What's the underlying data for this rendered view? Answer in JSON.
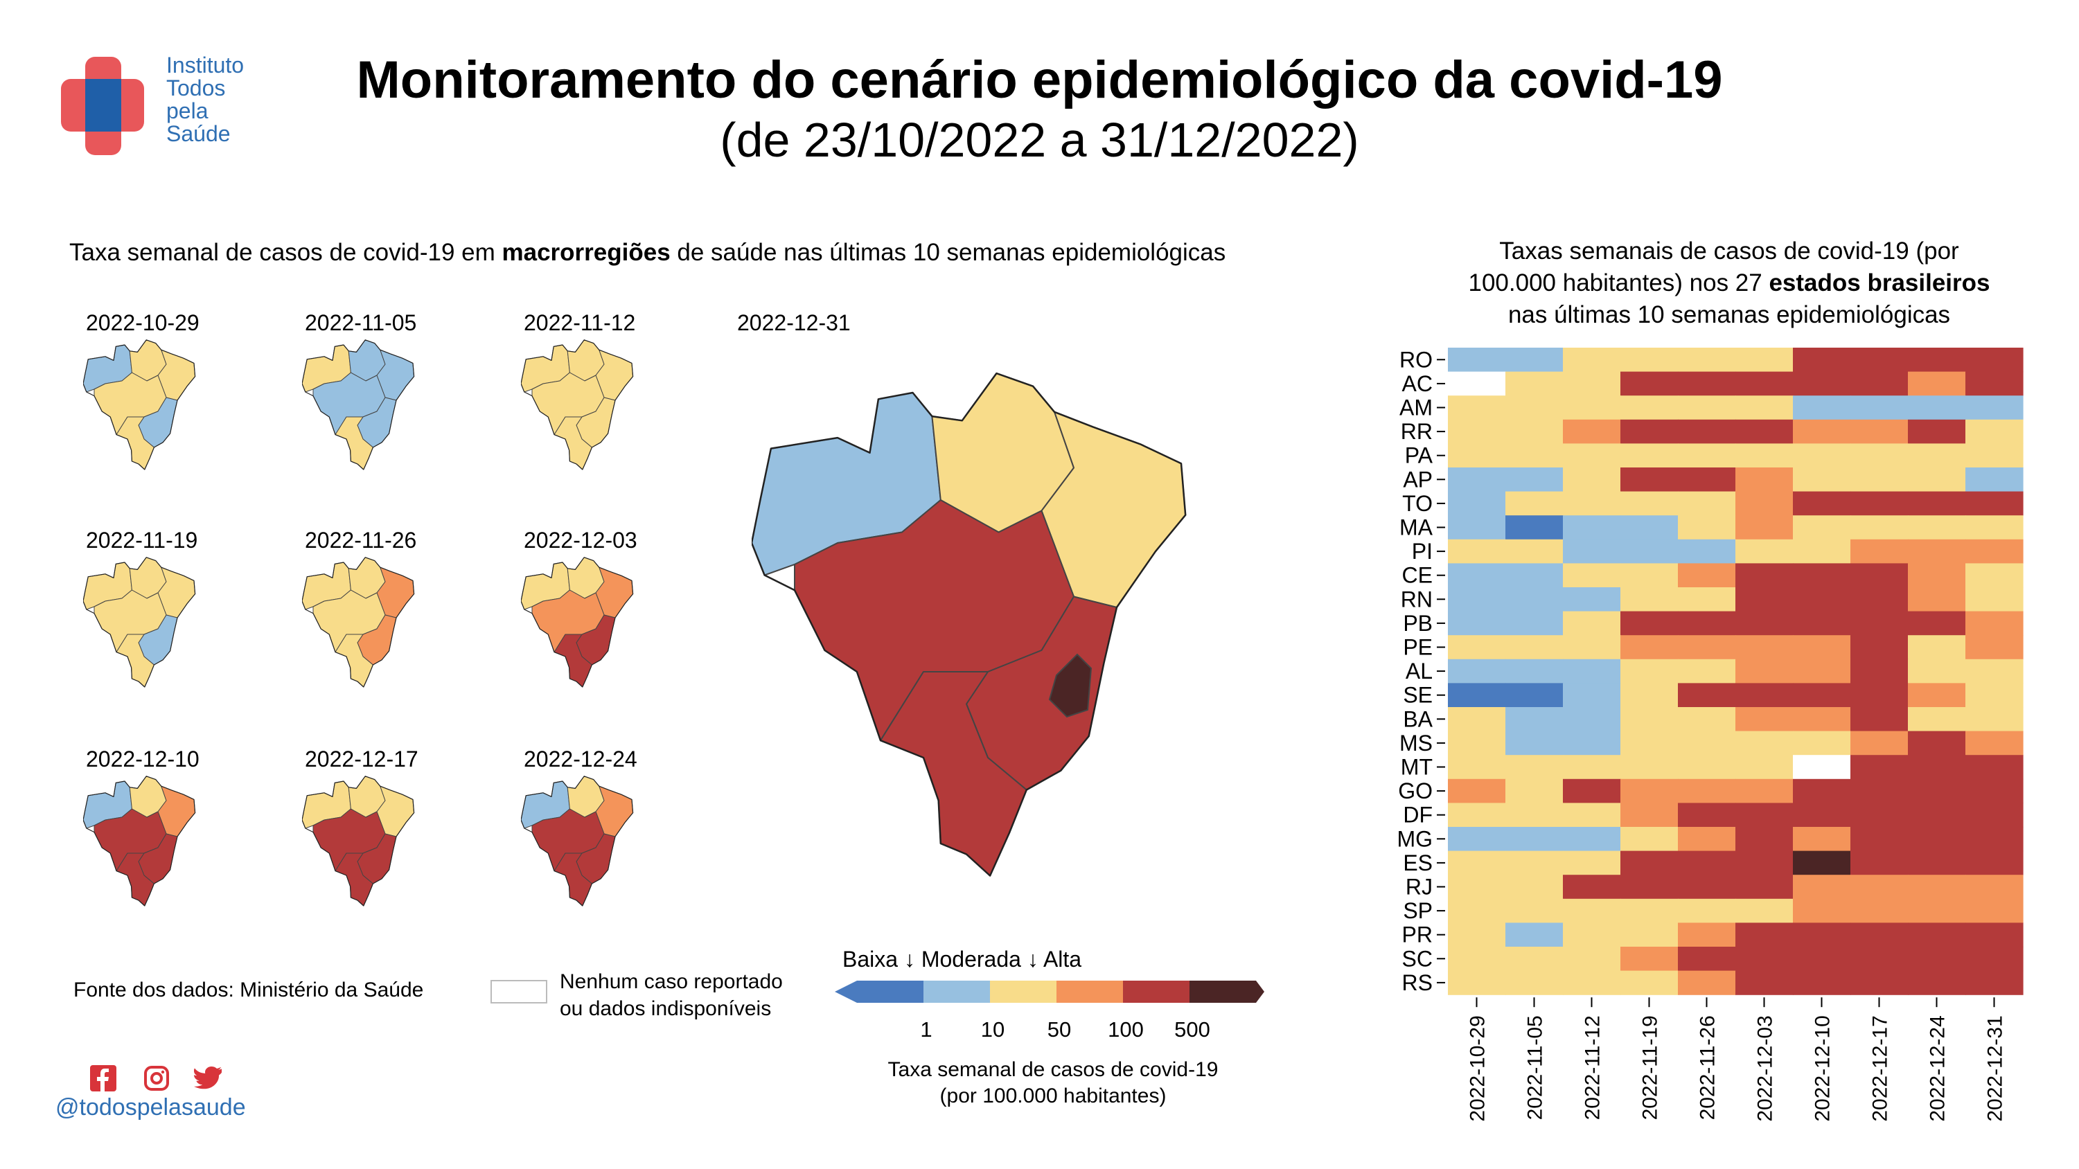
{
  "header": {
    "title": "Monitoramento do cenário epidemiológico da covid-19",
    "subtitle": "(de 23/10/2022 a 31/12/2022)"
  },
  "logo": {
    "lines": [
      "Instituto",
      "Todos",
      "pela",
      "Saúde"
    ],
    "colors": {
      "cross": "#e8575a",
      "center": "#1f5fa8",
      "text": "#2f6fb3"
    }
  },
  "maps": {
    "heading_pre": "Taxa semanal de casos de covid-19 em ",
    "heading_bold": "macrorregiões",
    "heading_post": " de saúde nas últimas 10 semanas epidemiológicas",
    "small_dates": [
      "2022-10-29",
      "2022-11-05",
      "2022-11-12",
      "2022-11-19",
      "2022-11-26",
      "2022-12-03",
      "2022-12-10",
      "2022-12-17",
      "2022-12-24"
    ],
    "large_date": "2022-12-31"
  },
  "footer": {
    "source": "Fonte dos dados: Ministério da Saúde",
    "na_line1": "Nenhum caso reportado",
    "na_line2": "ou dados indisponíveis",
    "handle": "@todospelasaude",
    "icons": [
      "facebook-icon",
      "instagram-icon",
      "twitter-icon"
    ]
  },
  "color_scale": {
    "heading": "Baixa ↓ Moderada ↓ Alta",
    "ticks": [
      "1",
      "10",
      "50",
      "100",
      "500"
    ],
    "title_line1": "Taxa semanal de casos de covid-19",
    "title_line2": "(por 100.000 habitantes)",
    "colors": [
      "#4a7bbf",
      "#97c0e0",
      "#f8dc8a",
      "#f4945a",
      "#b33a3a",
      "#4b2525"
    ]
  },
  "heatmap_heading": {
    "line1": "Taxas semanais de casos de covid-19 (por",
    "line2_pre": "100.000 habitantes) nos 27 ",
    "line2_bold": "estados brasileiros",
    "line3": "nas últimas 10 semanas epidemiológicas"
  },
  "chart_data": {
    "type": "heatmap",
    "x": [
      "2022-10-29",
      "2022-11-05",
      "2022-11-12",
      "2022-11-19",
      "2022-11-26",
      "2022-12-03",
      "2022-12-10",
      "2022-12-17",
      "2022-12-24",
      "2022-12-31"
    ],
    "y": [
      "RO",
      "AC",
      "AM",
      "RR",
      "PA",
      "AP",
      "TO",
      "MA",
      "PI",
      "CE",
      "RN",
      "PB",
      "PE",
      "AL",
      "SE",
      "BA",
      "MS",
      "MT",
      "GO",
      "DF",
      "MG",
      "ES",
      "RJ",
      "SP",
      "PR",
      "SC",
      "RS"
    ],
    "value_encoding": "category index: 0 = <1 (Baixa), 1 = 1–10, 2 = 10–50, 3 = 50–100, 4 = 100–500, 5 = >500 (Alta), null = nenhum caso reportado ou dados indisponíveis",
    "values": [
      [
        1,
        1,
        2,
        2,
        2,
        2,
        4,
        4,
        4,
        4
      ],
      [
        null,
        2,
        2,
        4,
        4,
        4,
        4,
        4,
        3,
        4
      ],
      [
        2,
        2,
        2,
        2,
        2,
        2,
        1,
        1,
        1,
        1
      ],
      [
        2,
        2,
        3,
        4,
        4,
        4,
        3,
        3,
        4,
        2
      ],
      [
        2,
        2,
        2,
        2,
        2,
        2,
        2,
        2,
        2,
        2
      ],
      [
        1,
        1,
        2,
        4,
        4,
        3,
        2,
        2,
        2,
        1
      ],
      [
        1,
        2,
        2,
        2,
        2,
        3,
        4,
        4,
        4,
        4
      ],
      [
        1,
        0,
        1,
        1,
        2,
        3,
        2,
        2,
        2,
        2
      ],
      [
        2,
        2,
        1,
        1,
        1,
        2,
        2,
        3,
        3,
        3
      ],
      [
        1,
        1,
        2,
        2,
        3,
        4,
        4,
        4,
        3,
        2
      ],
      [
        1,
        1,
        1,
        2,
        2,
        4,
        4,
        4,
        3,
        2
      ],
      [
        1,
        1,
        2,
        4,
        4,
        4,
        4,
        4,
        4,
        3
      ],
      [
        2,
        2,
        2,
        3,
        3,
        3,
        3,
        4,
        2,
        3
      ],
      [
        1,
        1,
        1,
        2,
        2,
        3,
        3,
        4,
        2,
        2
      ],
      [
        0,
        0,
        1,
        2,
        4,
        4,
        4,
        4,
        3,
        2
      ],
      [
        2,
        1,
        1,
        2,
        2,
        3,
        3,
        4,
        2,
        2
      ],
      [
        2,
        1,
        1,
        2,
        2,
        2,
        2,
        3,
        4,
        3
      ],
      [
        2,
        2,
        2,
        2,
        2,
        2,
        null,
        4,
        4,
        4
      ],
      [
        3,
        2,
        4,
        3,
        3,
        3,
        4,
        4,
        4,
        4
      ],
      [
        2,
        2,
        2,
        3,
        4,
        4,
        4,
        4,
        4,
        4
      ],
      [
        1,
        1,
        1,
        2,
        3,
        4,
        3,
        4,
        4,
        4
      ],
      [
        2,
        2,
        2,
        4,
        4,
        4,
        5,
        4,
        4,
        4
      ],
      [
        2,
        2,
        4,
        4,
        4,
        4,
        3,
        3,
        3,
        3
      ],
      [
        2,
        2,
        2,
        2,
        2,
        2,
        3,
        3,
        3,
        3
      ],
      [
        2,
        1,
        2,
        2,
        3,
        4,
        4,
        4,
        4,
        4
      ],
      [
        2,
        2,
        2,
        3,
        4,
        4,
        4,
        4,
        4,
        4
      ],
      [
        2,
        2,
        2,
        2,
        3,
        4,
        4,
        4,
        4,
        4
      ]
    ],
    "colors": [
      "#4a7bbf",
      "#97c0e0",
      "#f8dc8a",
      "#f4945a",
      "#b33a3a",
      "#4b2525"
    ],
    "na_color": "#ffffff",
    "grid": false
  }
}
